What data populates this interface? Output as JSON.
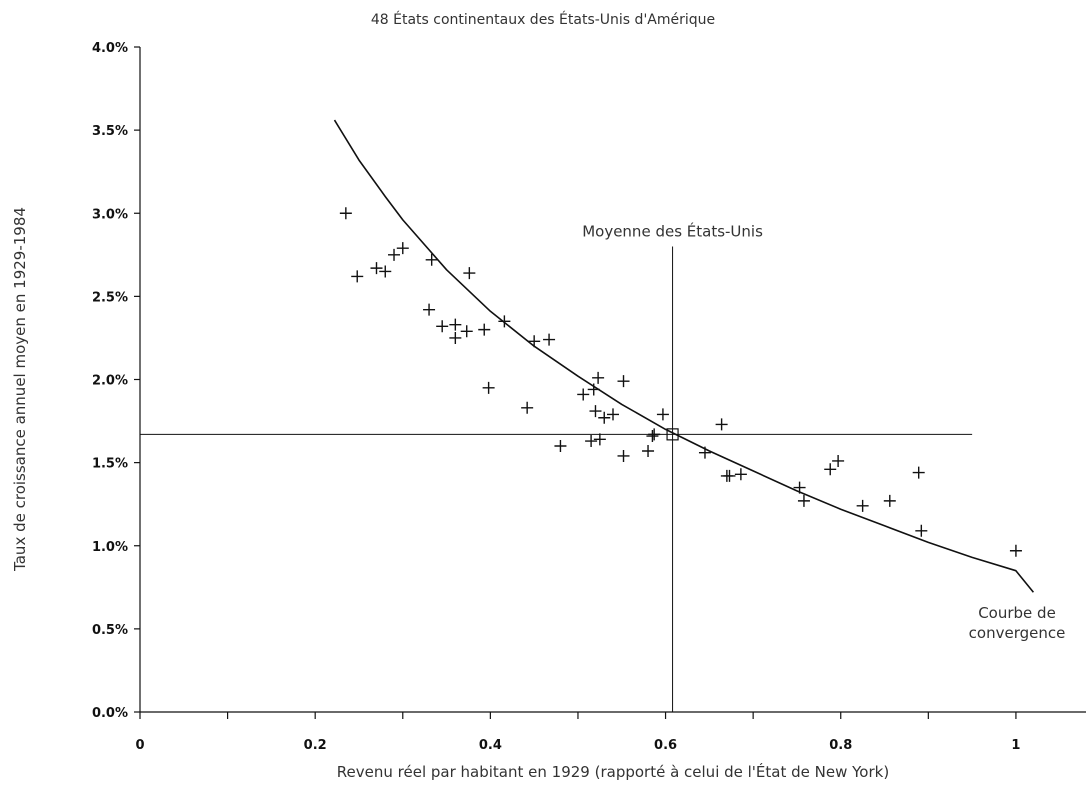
{
  "chart_data": {
    "type": "scatter",
    "title": "48 États continentaux des États-Unis d'Amérique",
    "xlabel": "Revenu réel par habitant en 1929 (rapporté à celui de l'État de New York)",
    "ylabel": "Taux de croissance annuel moyen en 1929-1984",
    "xlim": [
      0,
      1.08
    ],
    "ylim": [
      0,
      4.0
    ],
    "x_ticks": [
      {
        "value": 0,
        "label": "0"
      },
      {
        "value": 0.2,
        "label": "0.2"
      },
      {
        "value": 0.4,
        "label": "0.4"
      },
      {
        "value": 0.6,
        "label": "0.6"
      },
      {
        "value": 0.8,
        "label": "0.8"
      },
      {
        "value": 1.0,
        "label": "1"
      }
    ],
    "x_minor_ticks": [
      0.1,
      0.3,
      0.5,
      0.7,
      0.9
    ],
    "y_ticks": [
      {
        "value": 0.0,
        "label": "0.0%"
      },
      {
        "value": 0.5,
        "label": "0.5%"
      },
      {
        "value": 1.0,
        "label": "1.0%"
      },
      {
        "value": 1.5,
        "label": "1.5%"
      },
      {
        "value": 2.0,
        "label": "2.0%"
      },
      {
        "value": 2.5,
        "label": "2.5%"
      },
      {
        "value": 3.0,
        "label": "3.0%"
      },
      {
        "value": 3.5,
        "label": "3.5%"
      },
      {
        "value": 4.0,
        "label": "4.0%"
      }
    ],
    "points": [
      [
        0.235,
        3.0
      ],
      [
        0.248,
        2.62
      ],
      [
        0.27,
        2.67
      ],
      [
        0.28,
        2.65
      ],
      [
        0.29,
        2.75
      ],
      [
        0.3,
        2.79
      ],
      [
        0.33,
        2.42
      ],
      [
        0.333,
        2.72
      ],
      [
        0.345,
        2.32
      ],
      [
        0.36,
        2.33
      ],
      [
        0.36,
        2.25
      ],
      [
        0.373,
        2.29
      ],
      [
        0.376,
        2.64
      ],
      [
        0.393,
        2.3
      ],
      [
        0.398,
        1.95
      ],
      [
        0.416,
        2.35
      ],
      [
        0.442,
        1.83
      ],
      [
        0.45,
        2.23
      ],
      [
        0.467,
        2.24
      ],
      [
        0.48,
        1.6
      ],
      [
        0.506,
        1.91
      ],
      [
        0.515,
        1.63
      ],
      [
        0.518,
        1.94
      ],
      [
        0.52,
        1.81
      ],
      [
        0.523,
        2.01
      ],
      [
        0.525,
        1.64
      ],
      [
        0.53,
        1.77
      ],
      [
        0.54,
        1.79
      ],
      [
        0.552,
        1.99
      ],
      [
        0.552,
        1.54
      ],
      [
        0.58,
        1.57
      ],
      [
        0.585,
        1.66
      ],
      [
        0.587,
        1.67
      ],
      [
        0.597,
        1.79
      ],
      [
        0.645,
        1.56
      ],
      [
        0.664,
        1.73
      ],
      [
        0.67,
        1.42
      ],
      [
        0.673,
        1.42
      ],
      [
        0.686,
        1.43
      ],
      [
        0.753,
        1.35
      ],
      [
        0.758,
        1.27
      ],
      [
        0.788,
        1.46
      ],
      [
        0.797,
        1.51
      ],
      [
        0.825,
        1.24
      ],
      [
        0.856,
        1.27
      ],
      [
        0.889,
        1.44
      ],
      [
        0.892,
        1.09
      ],
      [
        1.0,
        0.97
      ]
    ],
    "mean_point": {
      "label": "Moyenne des États-Unis",
      "x": 0.608,
      "y": 1.67
    },
    "curve": {
      "label_line1": "Courbe de",
      "label_line2": "convergence",
      "points": [
        [
          0.222,
          3.56
        ],
        [
          0.25,
          3.32
        ],
        [
          0.28,
          3.1
        ],
        [
          0.3,
          2.96
        ],
        [
          0.35,
          2.66
        ],
        [
          0.4,
          2.41
        ],
        [
          0.45,
          2.2
        ],
        [
          0.5,
          2.02
        ],
        [
          0.55,
          1.85
        ],
        [
          0.6,
          1.7
        ],
        [
          0.65,
          1.57
        ],
        [
          0.7,
          1.45
        ],
        [
          0.75,
          1.33
        ],
        [
          0.8,
          1.22
        ],
        [
          0.85,
          1.12
        ],
        [
          0.9,
          1.02
        ],
        [
          0.95,
          0.93
        ],
        [
          1.0,
          0.85
        ],
        [
          1.02,
          0.72
        ]
      ]
    },
    "grid": false
  }
}
